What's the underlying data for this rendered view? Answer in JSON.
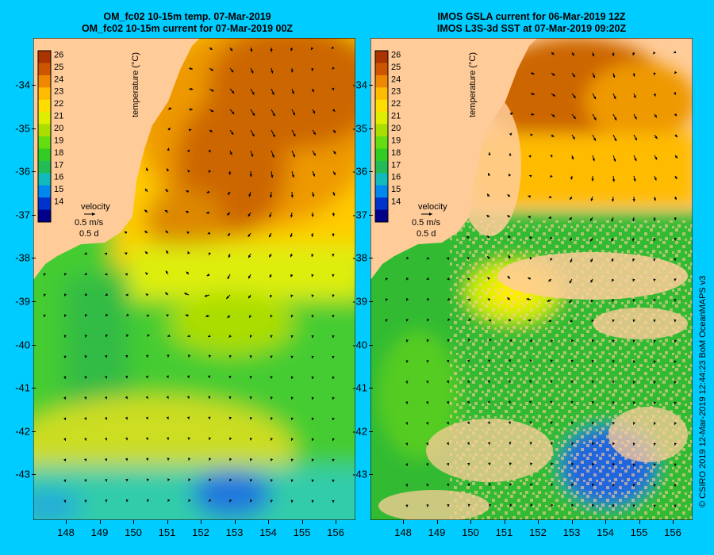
{
  "panels": [
    {
      "id": "left",
      "title_line1": "OM_fc02 10-15m temp. 07-Mar-2019",
      "title_line2": "OM_fc02 10-15m current for 07-Mar-2019 00Z",
      "colorbar_ticks": [
        "26",
        "25",
        "24",
        "23",
        "22",
        "21",
        "20",
        "19",
        "18",
        "17",
        "16",
        "15",
        "14"
      ],
      "colorbar_label": "temperature (°C)",
      "velocity_label": "velocity",
      "velocity_scale": "0.5 m/s",
      "velocity_time": "0.5 d"
    },
    {
      "id": "right",
      "title_line1": "IMOS GSLA current for 06-Mar-2019 12Z",
      "title_line2": "IMOS L3S-3d SST at 07-Mar-2019 09:20Z",
      "colorbar_ticks": [
        "26",
        "25",
        "24",
        "23",
        "22",
        "21",
        "20",
        "19",
        "18",
        "17",
        "16",
        "15",
        "14"
      ],
      "colorbar_label": "temperature (°C)",
      "velocity_label": "velocity",
      "velocity_scale": "0.5 m/s",
      "velocity_time": "0.5 d"
    }
  ],
  "lat_ticks": [
    "-34",
    "-35",
    "-36",
    "-37",
    "-38",
    "-39",
    "-40",
    "-41",
    "-42",
    "-43"
  ],
  "lon_ticks": [
    "148",
    "149",
    "150",
    "151",
    "152",
    "153",
    "154",
    "155",
    "156"
  ],
  "credit": "© CSIRO 2019  12-Mar-2019 12:44:23 BoM OceanMAPS v3",
  "colors": {
    "background": "#00ccff",
    "land": "#ffcc99",
    "colormap": [
      "#00008b",
      "#0033cc",
      "#0088ee",
      "#11bbbb",
      "#22bb55",
      "#33cc22",
      "#66dd11",
      "#aadd00",
      "#ddee00",
      "#ffdd00",
      "#ffbb00",
      "#ee8800",
      "#cc5500",
      "#aa3300"
    ]
  }
}
